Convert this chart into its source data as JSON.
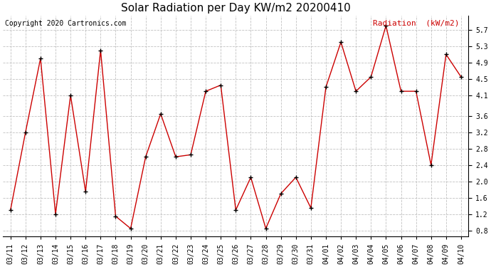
{
  "title": "Solar Radiation per Day KW/m2 20200410",
  "copyright_text": "Copyright 2020 Cartronics.com",
  "legend_label": "Radiation  (kW/m2)",
  "dates": [
    "03/11",
    "03/12",
    "03/13",
    "03/14",
    "03/15",
    "03/16",
    "03/17",
    "03/18",
    "03/19",
    "03/20",
    "03/21",
    "03/22",
    "03/23",
    "03/24",
    "03/25",
    "03/26",
    "03/27",
    "03/28",
    "03/29",
    "03/30",
    "03/31",
    "04/01",
    "04/02",
    "04/03",
    "04/04",
    "04/05",
    "04/06",
    "04/07",
    "04/08",
    "04/09",
    "04/10"
  ],
  "values": [
    1.3,
    3.2,
    5.0,
    1.2,
    4.1,
    1.75,
    5.2,
    1.15,
    0.85,
    2.6,
    3.65,
    2.6,
    2.65,
    4.2,
    4.35,
    1.3,
    2.1,
    0.85,
    1.7,
    2.1,
    1.35,
    4.3,
    5.4,
    4.2,
    4.55,
    5.8,
    4.2,
    4.2,
    2.4,
    5.1,
    4.55
  ],
  "line_color": "#cc0000",
  "marker_color": "black",
  "bg_color": "#ffffff",
  "grid_color": "#bbbbbb",
  "ylim": [
    0.65,
    6.05
  ],
  "yticks": [
    0.8,
    1.2,
    1.6,
    2.0,
    2.4,
    2.8,
    3.2,
    3.6,
    4.1,
    4.5,
    4.9,
    5.3,
    5.7
  ],
  "title_fontsize": 11,
  "copyright_fontsize": 7,
  "legend_fontsize": 8,
  "tick_fontsize": 7,
  "ytick_fontsize": 7
}
